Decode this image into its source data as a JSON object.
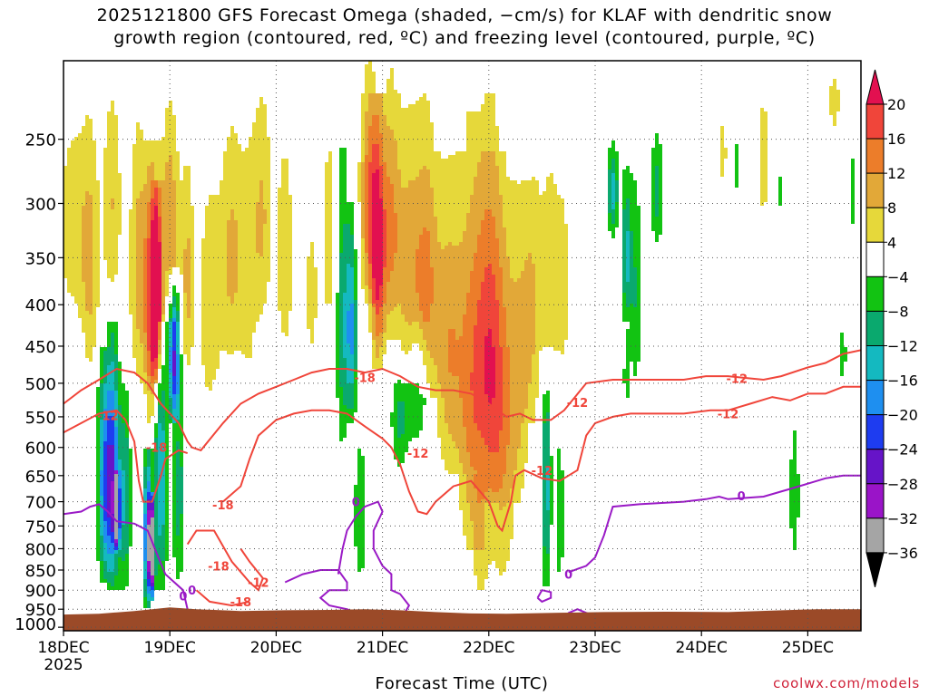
{
  "title_line1": "2025121800 GFS Forecast Omega (shaded, −cm/s) for KLAF with dendritic snow",
  "title_line2": "growth region (contoured, red, ºC) and freezing level (contoured, purple, ºC)",
  "xlabel": "Forecast Time (UTC)",
  "credit": "coolwx.com/models",
  "colors": {
    "dgz_contour": "#f0453a",
    "freezing_contour": "#9a1ac6",
    "ground": "#9b4a28"
  },
  "chart_data": {
    "type": "heatmap",
    "title": "2025121800 GFS Forecast Omega (shaded, −cm/s) for KLAF with dendritic snow growth region (contoured, red, ºC) and freezing level (contoured, purple, ºC)",
    "xlabel": "Forecast Time (UTC)",
    "ylabel": "",
    "x_ticks": [
      {
        "label": "18DEC",
        "sublabel": "2025",
        "t": 0
      },
      {
        "label": "19DEC",
        "t": 24
      },
      {
        "label": "20DEC",
        "t": 48
      },
      {
        "label": "21DEC",
        "t": 72
      },
      {
        "label": "22DEC",
        "t": 96
      },
      {
        "label": "23DEC",
        "t": 120
      },
      {
        "label": "24DEC",
        "t": 144
      },
      {
        "label": "25DEC",
        "t": 168
      }
    ],
    "xlim": [
      0,
      180
    ],
    "y_ticks": [
      {
        "label": "250",
        "p": 250
      },
      {
        "label": "300",
        "p": 300
      },
      {
        "label": "350",
        "p": 350
      },
      {
        "label": "400",
        "p": 400
      },
      {
        "label": "450",
        "p": 450
      },
      {
        "label": "500",
        "p": 500
      },
      {
        "label": "550",
        "p": 550
      },
      {
        "label": "600",
        "p": 600
      },
      {
        "label": "650",
        "p": 650
      },
      {
        "label": "700",
        "p": 700
      },
      {
        "label": "750",
        "p": 750
      },
      {
        "label": "800",
        "p": 800
      },
      {
        "label": "850",
        "p": 850
      },
      {
        "label": "900",
        "p": 900
      },
      {
        "label": "950",
        "p": 950
      },
      {
        "label": "1000",
        "p": 1000
      }
    ],
    "ylim": [
      200,
      1010
    ],
    "y_scale": "log (pressure, inverted)",
    "grid": true,
    "colorbar": {
      "labels": [
        "20",
        "16",
        "12",
        "8",
        "4",
        "−4",
        "−8",
        "−12",
        "−16",
        "−20",
        "−24",
        "−28",
        "−32",
        "−36"
      ],
      "levels": [
        20,
        16,
        12,
        8,
        4,
        -4,
        -8,
        -12,
        -16,
        -20,
        -24,
        -28,
        -32,
        -36
      ],
      "colors": [
        "#e21050",
        "#f0453a",
        "#ec7d2a",
        "#e2a838",
        "#e6d83a",
        "#ffffff",
        "#12c312",
        "#0aa96e",
        "#14b9c0",
        "#1e8ff0",
        "#1e3cf0",
        "#6614c8",
        "#9a14c8",
        "#a5a5a5",
        "#000000"
      ]
    },
    "contour_labels": {
      "dgz": [
        "-12",
        "-18",
        "-12",
        "-18",
        "-12",
        "-18",
        "-12",
        "-12",
        "-18",
        "-12",
        "-18",
        "-12"
      ],
      "freezing": [
        "0",
        "0",
        "0",
        "0",
        "0",
        "0"
      ]
    }
  }
}
